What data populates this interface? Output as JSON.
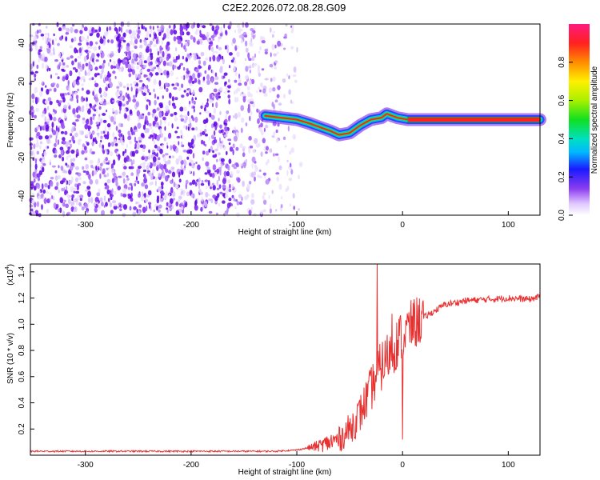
{
  "title": "C2E2.2026.072.08.28.G09",
  "chart_data": [
    {
      "type": "heatmap",
      "xlabel": "Height of straight line (km)",
      "ylabel": "Frequency (Hz)",
      "xlim": [
        -352,
        130
      ],
      "ylim": [
        -50,
        50
      ],
      "xticks": [
        -300,
        -200,
        -100,
        0,
        100
      ],
      "yticks": [
        -40,
        -20,
        0,
        20,
        40
      ],
      "noise_region_x": [
        -352,
        -95
      ],
      "signal_track": {
        "x": [
          -130,
          -115,
          -100,
          -88,
          -78,
          -68,
          -60,
          -50,
          -40,
          -30,
          -20,
          -15,
          -5,
          5,
          130
        ],
        "freq": [
          2,
          1,
          0,
          -2,
          -4,
          -6,
          -8,
          -7,
          -3,
          0,
          1,
          3,
          1,
          0,
          0
        ]
      },
      "colorbar": {
        "label": "Normalized spectral amplitude",
        "ticks": [
          0.0,
          0.2,
          0.4,
          0.6,
          0.8
        ],
        "range": [
          0,
          1
        ]
      }
    },
    {
      "type": "line",
      "xlabel": "Height of straight line (km)",
      "ylabel": "SNR (10 * v/v)",
      "exponent_label": "(x10",
      "exponent_power": "4",
      "exponent_close": ")",
      "xlim": [
        -352,
        130
      ],
      "ylim": [
        0,
        1.46
      ],
      "xticks": [
        -300,
        -200,
        -100,
        0,
        100
      ],
      "yticks": [
        0.2,
        0.4,
        0.6,
        0.8,
        1.0,
        1.2,
        1.4
      ],
      "line_color": "#e83030",
      "series": [
        {
          "name": "SNR",
          "x": [
            -352,
            -300,
            -200,
            -120,
            -100,
            -80,
            -60,
            -50,
            -40,
            -30,
            -25,
            -20,
            -10,
            0,
            10,
            20,
            30,
            40,
            60,
            80,
            100,
            120,
            130
          ],
          "y": [
            0.03,
            0.03,
            0.03,
            0.03,
            0.04,
            0.07,
            0.12,
            0.2,
            0.32,
            0.5,
            0.6,
            0.68,
            0.8,
            0.92,
            1.0,
            1.05,
            1.1,
            1.15,
            1.18,
            1.19,
            1.2,
            1.19,
            1.21
          ]
        }
      ],
      "spikes": [
        {
          "x": -24,
          "y": 1.46
        },
        {
          "x": -10,
          "y": 1.08
        },
        {
          "x": 0,
          "y": 0.12
        }
      ]
    }
  ]
}
